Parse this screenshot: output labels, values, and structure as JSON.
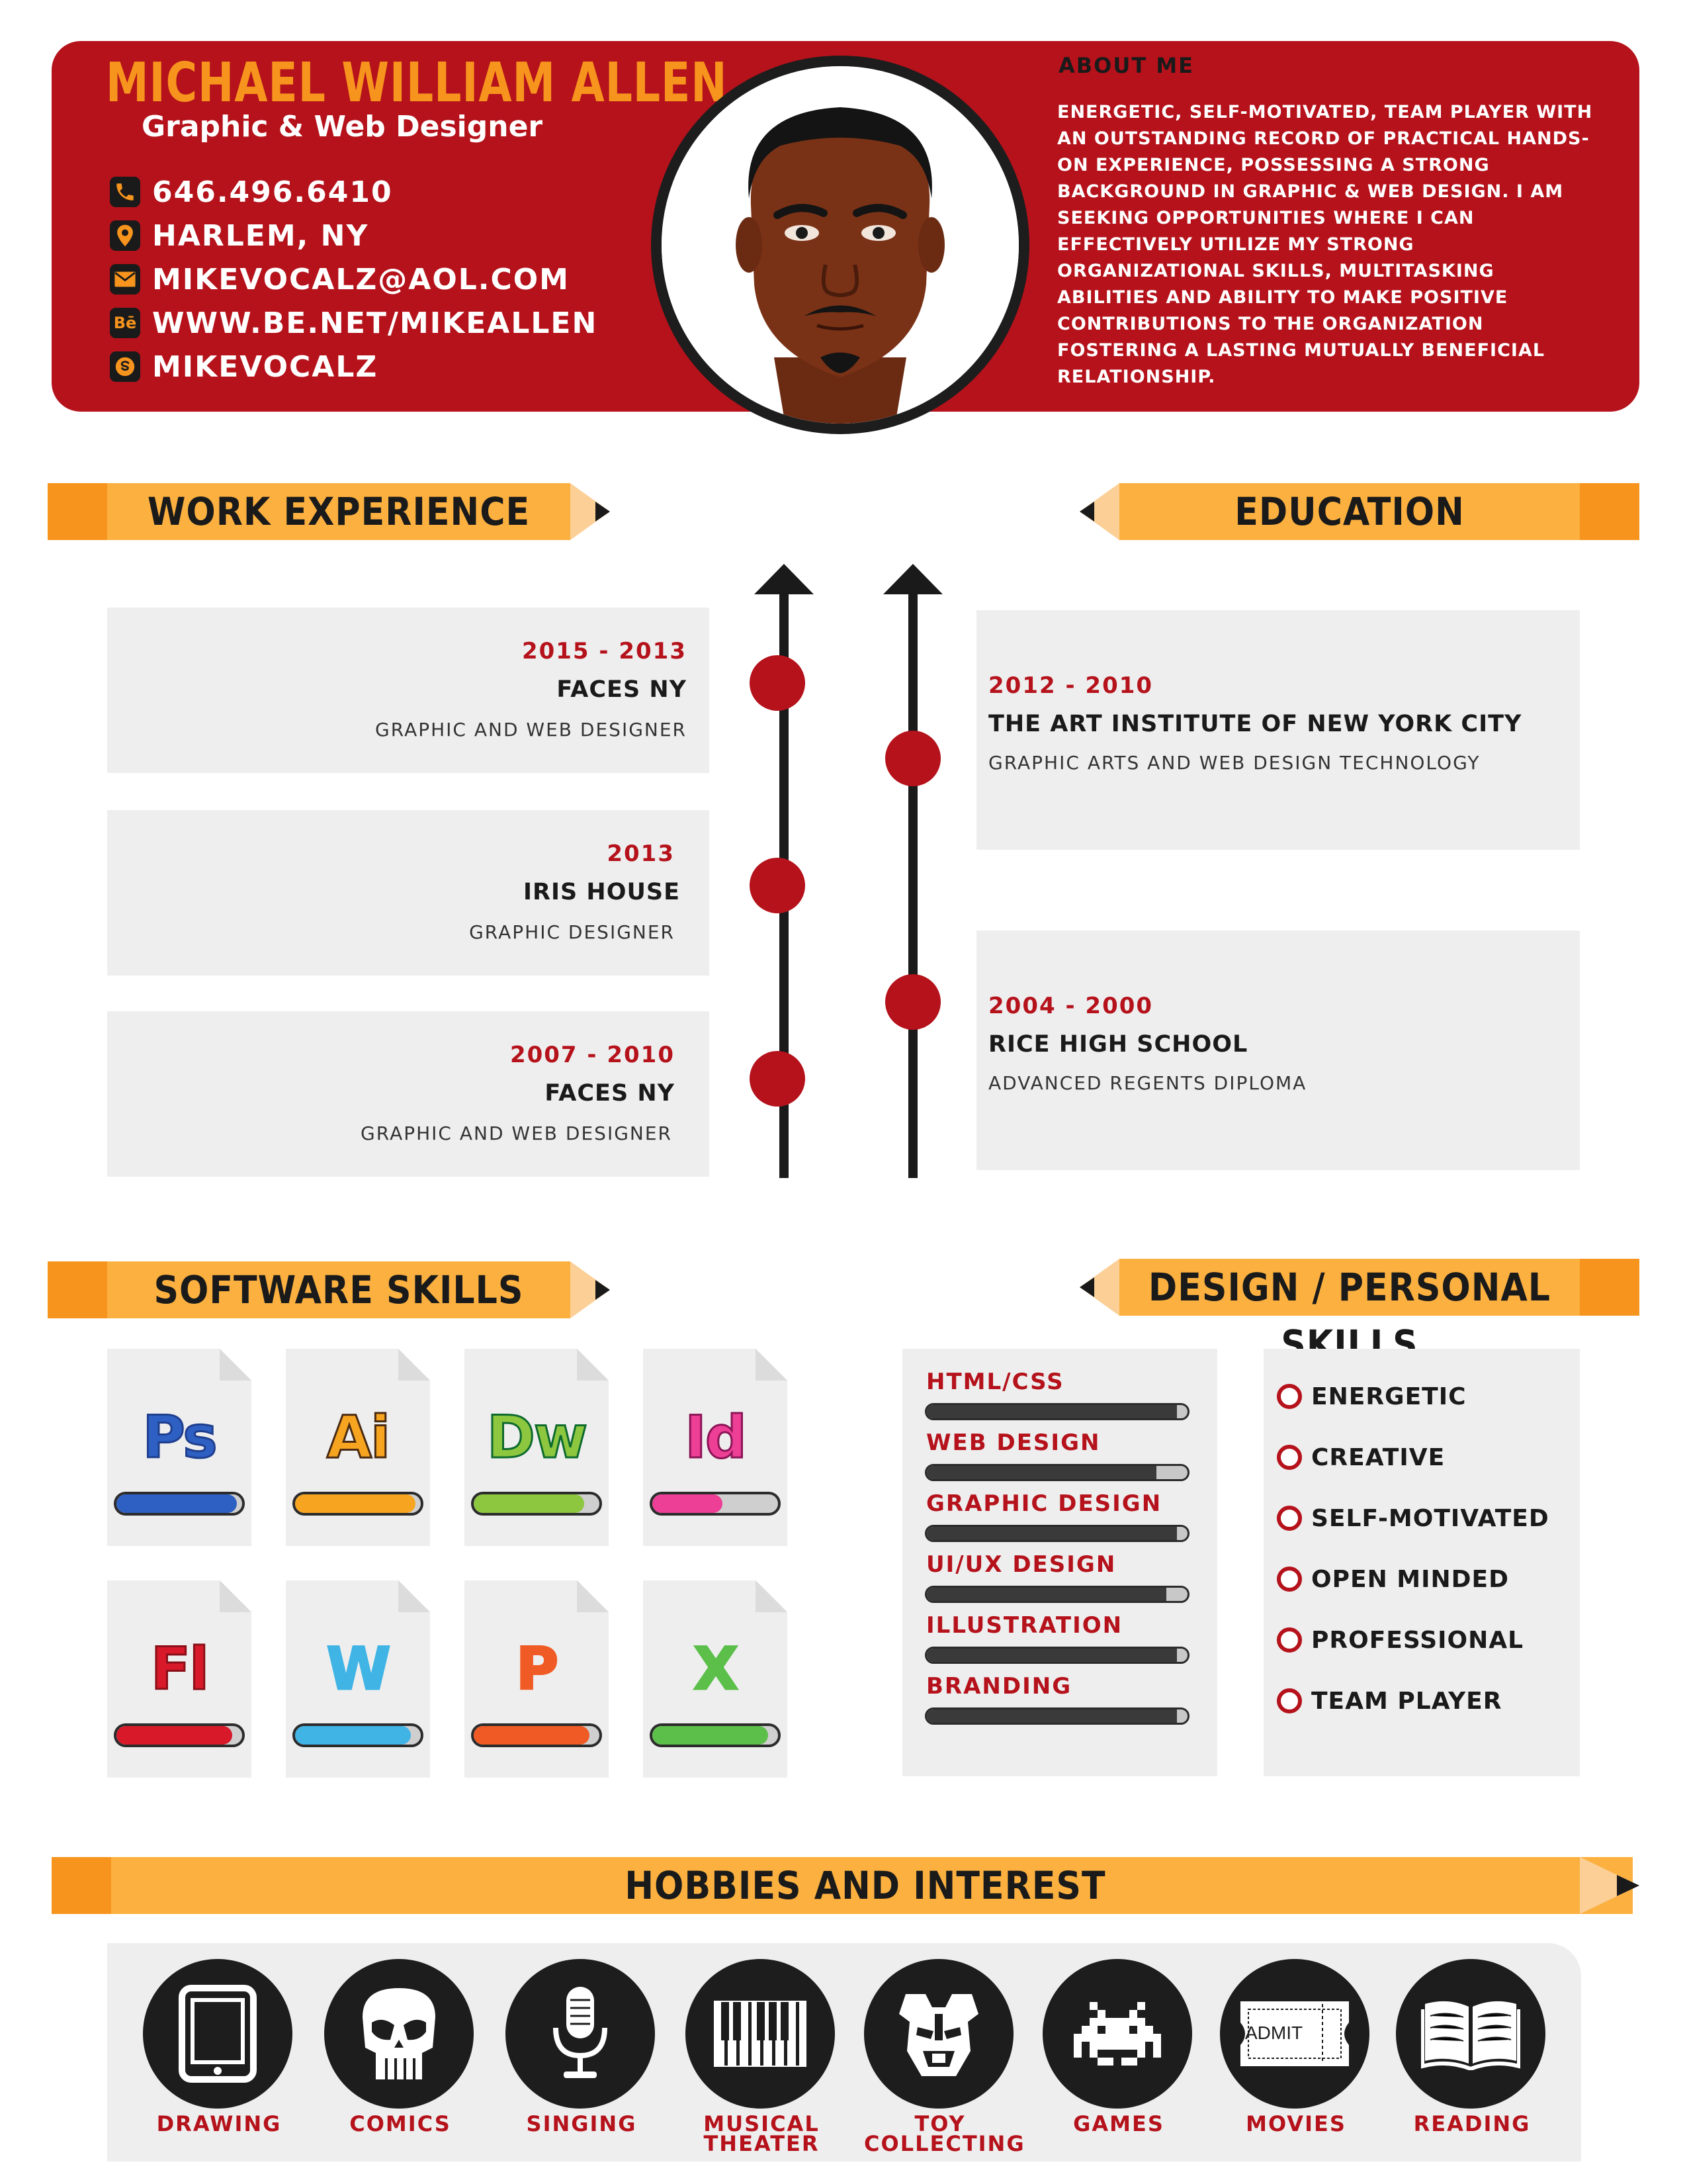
{
  "header": {
    "name": "MICHAEL WILLIAM ALLEN",
    "role": "Graphic & Web Designer",
    "contacts": [
      {
        "icon": "phone-icon",
        "text": "646.496.6410"
      },
      {
        "icon": "location-pin-icon",
        "text": "HARLEM, NY"
      },
      {
        "icon": "email-icon",
        "text": "MIKEVOCALZ@AOL.COM"
      },
      {
        "icon": "behance-icon",
        "text": "WWW.BE.NET/MIKEALLEN",
        "glyph": "Bē"
      },
      {
        "icon": "skype-icon",
        "text": "MIKEVOCALZ"
      }
    ],
    "about_title": "ABOUT ME",
    "about_text": "ENERGETIC, SELF-MOTIVATED, TEAM PLAYER WITH AN OUTSTANDING RECORD OF PRACTICAL HANDS-ON EXPERIENCE, POSSESSING A STRONG BACKGROUND IN GRAPHIC & WEB DESIGN. I AM SEEKING OPPORTUNITIES WHERE I CAN EFFECTIVELY UTILIZE MY STRONG ORGANIZATIONAL SKILLS, MULTITASKING ABILITIES AND ABILITY TO MAKE POSITIVE CONTRIBUTIONS TO THE ORGANIZATION FOSTERING A LASTING MUTUALLY BENEFICIAL RELATIONSHIP."
  },
  "sections": {
    "work": "WORK EXPERIENCE",
    "education": "EDUCATION",
    "software": "SOFTWARE SKILLS",
    "design": "DESIGN / PERSONAL SKILLS",
    "hobbies": "HOBBIES AND INTEREST"
  },
  "work": [
    {
      "years": "2015 - 2013",
      "org": "FACES NY",
      "position": "GRAPHIC  AND WEB DESIGNER"
    },
    {
      "years": "2013",
      "org": "IRIS HOUSE",
      "position": "GRAPHIC  DESIGNER"
    },
    {
      "years": "2007 - 2010",
      "org": "FACES NY",
      "position": "GRAPHIC  AND WEB DESIGNER"
    }
  ],
  "education": [
    {
      "years": "2012 - 2010",
      "org": "THE ART INSTITUTE OF NEW YORK CITY",
      "position": "GRAPHIC ARTS AND WEB DESIGN TECHNOLOGY"
    },
    {
      "years": "2004 - 2000",
      "org": "RICE HIGH SCHOOL",
      "position": "ADVANCED REGENTS DIPLOMA"
    }
  ],
  "software": [
    {
      "abbr": "Ps",
      "color": "#2e5fc2",
      "outline": "#1f3f8f",
      "level": 0.96
    },
    {
      "abbr": "Ai",
      "color": "#f7a520",
      "outline": "#4a2a12",
      "level": 0.96
    },
    {
      "abbr": "Dw",
      "color": "#8dc63f",
      "outline": "#0d6b2e",
      "level": 0.88
    },
    {
      "abbr": "Id",
      "color": "#ed3f95",
      "outline": "#8c1457",
      "level": 0.56
    },
    {
      "abbr": "Fl",
      "color": "#d7192a",
      "outline": "#8a0f18",
      "level": 0.92
    },
    {
      "abbr": "W",
      "color": "#3fb4e5",
      "outline": "#3fb4e5",
      "level": 0.92
    },
    {
      "abbr": "P",
      "color": "#f05a24",
      "outline": "#f05a24",
      "level": 0.92
    },
    {
      "abbr": "X",
      "color": "#5bbf4a",
      "outline": "#5bbf4a",
      "level": 0.92
    }
  ],
  "design_skills": [
    {
      "name": "HTML/CSS",
      "level": 0.96
    },
    {
      "name": "WEB DESIGN",
      "level": 0.88
    },
    {
      "name": "GRAPHIC DESIGN",
      "level": 0.96
    },
    {
      "name": "UI/UX DESIGN",
      "level": 0.92
    },
    {
      "name": "ILLUSTRATION",
      "level": 0.96
    },
    {
      "name": "BRANDING",
      "level": 0.96
    }
  ],
  "personal_skills": [
    "ENERGETIC",
    "CREATIVE",
    "SELF-MOTIVATED",
    "OPEN MINDED",
    "PROFESSIONAL",
    "TEAM PLAYER"
  ],
  "hobbies": [
    {
      "label": "DRAWING",
      "icon": "tablet-icon"
    },
    {
      "label": "COMICS",
      "icon": "skull-icon"
    },
    {
      "label": "SINGING",
      "icon": "microphone-icon"
    },
    {
      "label": "MUSICAL THEATER",
      "icon": "piano-keys-icon"
    },
    {
      "label": "TOY COLLECTING",
      "icon": "robot-mask-icon"
    },
    {
      "label": "GAMES",
      "icon": "space-invader-icon"
    },
    {
      "label": "MOVIES",
      "icon": "ticket-icon",
      "ticket_text": "ADMIT"
    },
    {
      "label": "READING",
      "icon": "open-book-icon"
    }
  ],
  "colors": {
    "brand_red": "#b5121b",
    "brand_orange": "#f7941d",
    "banner_yellow": "#fbb040",
    "panel_gray": "#eeeeee"
  }
}
